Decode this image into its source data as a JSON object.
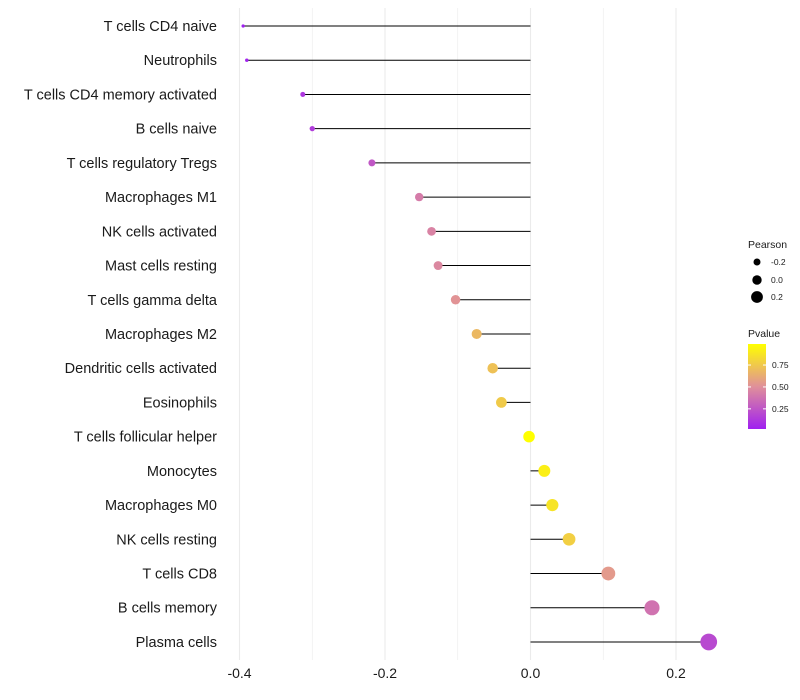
{
  "chart_data": {
    "type": "lollipop",
    "title": "",
    "xlabel": "",
    "ylabel": "",
    "xlim": [
      -0.4,
      0.25
    ],
    "x_ticks": [
      -0.4,
      -0.2,
      0.0,
      0.2
    ],
    "x_tick_labels": [
      "-0.4",
      "-0.2",
      "0.0",
      "0.2"
    ],
    "baseline": 0,
    "grid": "vertical",
    "categories": [
      "T cells CD4 naive",
      "Neutrophils",
      "T cells CD4 memory activated",
      "B cells naive",
      "T cells regulatory  Tregs",
      "Macrophages M1",
      "NK cells activated",
      "Mast cells resting",
      "T cells gamma delta",
      "Macrophages M2",
      "Dendritic cells activated",
      "Eosinophils",
      "T cells follicular helper",
      "Monocytes",
      "Macrophages M0",
      "NK cells resting",
      "T cells CD8",
      "B cells memory",
      "Plasma cells"
    ],
    "pearson": [
      -0.395,
      -0.39,
      -0.313,
      -0.3,
      -0.218,
      -0.153,
      -0.136,
      -0.127,
      -0.103,
      -0.074,
      -0.052,
      -0.04,
      -0.002,
      0.019,
      0.03,
      0.053,
      0.107,
      0.167,
      0.245
    ],
    "pvalue": [
      0.02,
      0.03,
      0.12,
      0.14,
      0.26,
      0.42,
      0.45,
      0.47,
      0.52,
      0.68,
      0.72,
      0.76,
      0.99,
      0.92,
      0.87,
      0.78,
      0.55,
      0.38,
      0.2
    ],
    "legend": {
      "position": "right",
      "size_title": "Pearson",
      "size_labels": [
        "-0.2",
        "0.0",
        "0.2"
      ],
      "size_values": [
        -0.2,
        0.0,
        0.2
      ],
      "color_title": "Pvalue",
      "color_labels": [
        "0.75",
        "0.50",
        "0.25"
      ],
      "color_values": [
        0.75,
        0.5,
        0.25
      ],
      "color_range": [
        0.02,
        0.99
      ]
    },
    "colors": {
      "low": "#a020f0",
      "mid": "#e0909a",
      "high": "#ffff00",
      "stem": "#000000",
      "grid": "#ebebeb"
    }
  }
}
